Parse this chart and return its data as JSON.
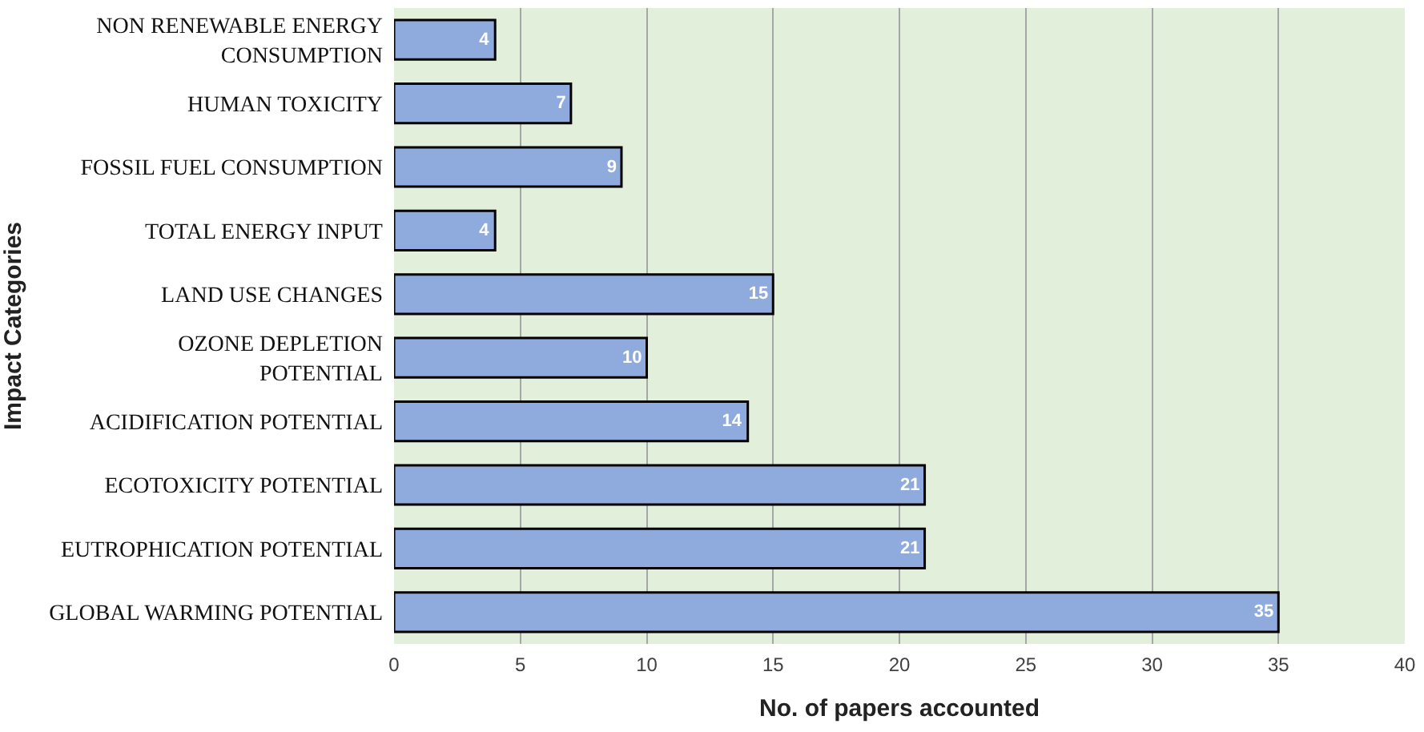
{
  "chart_data": {
    "type": "bar",
    "orientation": "horizontal",
    "xlabel": "No. of papers accounted",
    "ylabel": "Impact Categories",
    "categories": [
      "NON RENEWABLE ENERGY CONSUMPTION",
      "HUMAN TOXICITY",
      "FOSSIL FUEL CONSUMPTION",
      "TOTAL ENERGY INPUT",
      "LAND USE CHANGES",
      "OZONE DEPLETION POTENTIAL",
      "ACIDIFICATION POTENTIAL",
      "ECOTOXICITY POTENTIAL",
      "EUTROPHICATION POTENTIAL",
      "GLOBAL WARMING POTENTIAL"
    ],
    "values": [
      4,
      7,
      9,
      4,
      15,
      10,
      14,
      21,
      21,
      35
    ],
    "color": "#8faadc",
    "xlim": [
      0,
      40
    ],
    "xticks": [
      0,
      5,
      10,
      15,
      20,
      25,
      30,
      35,
      40
    ],
    "grid": "x",
    "data_labels": true,
    "legend": false
  }
}
